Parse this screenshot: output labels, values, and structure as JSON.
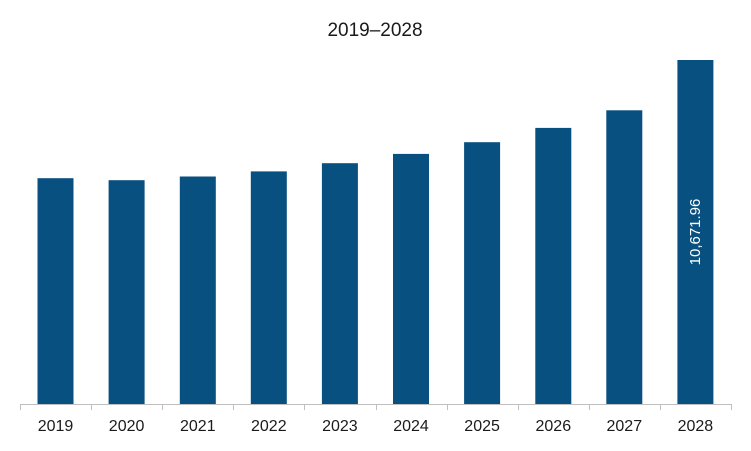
{
  "chart_data": {
    "type": "bar",
    "title": "2019–2028",
    "categories": [
      "2019",
      "2020",
      "2021",
      "2022",
      "2023",
      "2024",
      "2025",
      "2026",
      "2027",
      "2028"
    ],
    "values": [
      7005,
      6942,
      7057,
      7217,
      7470,
      7760,
      8123,
      8565,
      9110,
      10671.96
    ],
    "ylim": [
      0,
      10671.96
    ],
    "data_labels": [
      {
        "category": "2028",
        "text": "10,671.96"
      }
    ],
    "grid": false,
    "legend": "none",
    "colors": {
      "bar": "#08507f",
      "axis": "#bfbfbf",
      "data_label": "#ffffff"
    }
  }
}
